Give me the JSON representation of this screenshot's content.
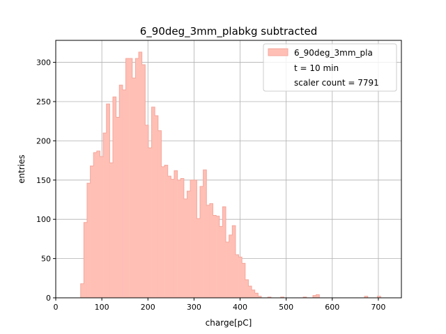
{
  "chart_data": {
    "type": "bar",
    "title": "6_90deg_3mm_plabkg subtracted",
    "xlabel": "charge[pC]",
    "ylabel": "entries",
    "xlim": [
      0,
      750
    ],
    "ylim": [
      0,
      328
    ],
    "xticks": [
      0,
      100,
      200,
      300,
      400,
      500,
      600,
      700
    ],
    "yticks": [
      0,
      50,
      100,
      150,
      200,
      250,
      300
    ],
    "grid": true,
    "legend_position": "top-right",
    "legend": {
      "series": "6_90deg_3mm_pla",
      "extra": [
        "t = 10 min",
        "scaler count = 7791"
      ]
    },
    "colors": {
      "fill": "#ffbfb5",
      "edge": "#f4a79c"
    },
    "bin_width": 7,
    "bin_start": 54,
    "series": [
      {
        "name": "6_90deg_3mm_pla",
        "values": [
          18,
          96,
          146,
          168,
          185,
          187,
          180,
          210,
          247,
          172,
          256,
          230,
          271,
          265,
          305,
          305,
          280,
          305,
          313,
          297,
          220,
          191,
          243,
          232,
          213,
          167,
          169,
          155,
          151,
          162,
          150,
          152,
          126,
          136,
          150,
          150,
          101,
          142,
          163,
          118,
          120,
          105,
          104,
          91,
          116,
          71,
          80,
          92,
          55,
          52,
          44,
          23,
          15,
          10,
          6,
          2,
          0,
          0,
          1,
          0,
          0,
          0,
          1,
          0,
          0,
          0,
          0,
          0,
          0,
          1,
          0,
          0,
          3,
          4,
          0,
          0,
          0,
          0,
          0,
          0,
          0,
          0,
          0,
          0,
          0,
          0,
          0,
          0,
          2,
          0,
          0,
          0,
          2
        ]
      }
    ]
  }
}
